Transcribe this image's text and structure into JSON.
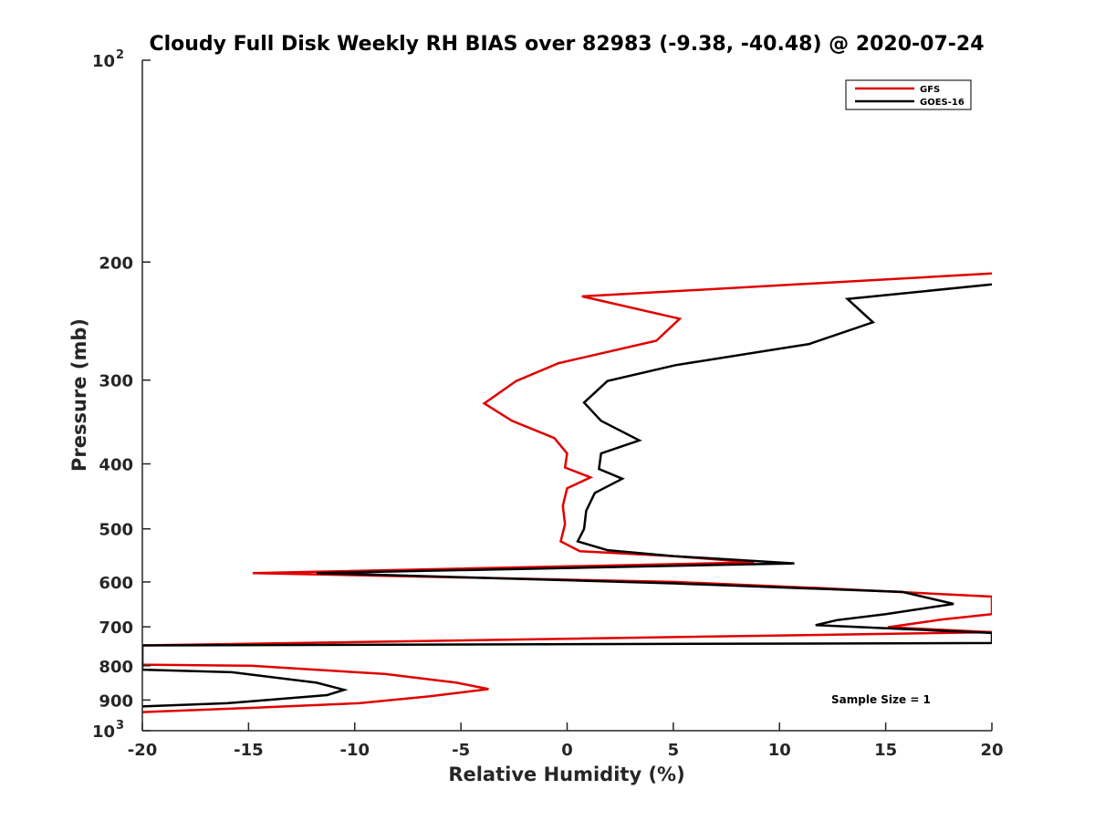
{
  "chart_data": {
    "type": "line",
    "title": "Cloudy Full Disk Weekly RH BIAS over 82983 (-9.38, -40.48) @ 2020-07-24",
    "xlabel": "Relative Humidity (%)",
    "ylabel": "Pressure (mb)",
    "xlim": [
      -20,
      20
    ],
    "ylim": [
      100,
      1000
    ],
    "y_scale": "log",
    "y_reversed": true,
    "grid": false,
    "legend_position": "top-right",
    "annotation": "Sample Size = 1",
    "x_ticks": [
      "-20",
      "-15",
      "-10",
      "-5",
      "0",
      "5",
      "10",
      "15",
      "20"
    ],
    "y_ticks": [
      {
        "value": 100,
        "base": "10",
        "exp": "2"
      },
      {
        "value": 200,
        "label": "200"
      },
      {
        "value": 300,
        "label": "300"
      },
      {
        "value": 400,
        "label": "400"
      },
      {
        "value": 500,
        "label": "500"
      },
      {
        "value": 600,
        "label": "600"
      },
      {
        "value": 700,
        "label": "700"
      },
      {
        "value": 800,
        "label": "800"
      },
      {
        "value": 900,
        "label": "900"
      },
      {
        "value": 1000,
        "base": "10",
        "exp": "3"
      }
    ],
    "series": [
      {
        "name": "GFS",
        "color": "#e00000",
        "points": [
          [
            20,
            208
          ],
          [
            0.7,
            225
          ],
          [
            5.3,
            243
          ],
          [
            4.2,
            262
          ],
          [
            -0.4,
            283
          ],
          [
            -2.4,
            301
          ],
          [
            -3.9,
            325
          ],
          [
            -2.6,
            345
          ],
          [
            -0.6,
            366
          ],
          [
            0,
            386
          ],
          [
            -0.1,
            405
          ],
          [
            1.1,
            419
          ],
          [
            0,
            435
          ],
          [
            -0.2,
            462
          ],
          [
            -0.1,
            492
          ],
          [
            -0.3,
            522
          ],
          [
            0.6,
            540
          ],
          [
            5,
            549
          ],
          [
            8.8,
            561
          ],
          [
            -14.8,
            582
          ],
          [
            5,
            600
          ],
          [
            12,
            613
          ],
          [
            20,
            631
          ],
          [
            20,
            670
          ],
          [
            17.6,
            683
          ],
          [
            15.1,
            701
          ],
          [
            20,
            713
          ],
          [
            -20,
            746
          ],
          [
            -20,
            797
          ],
          [
            -14.9,
            800
          ],
          [
            -8.6,
            823
          ],
          [
            -5.2,
            848
          ],
          [
            -3.7,
            867
          ],
          [
            -6.5,
            889
          ],
          [
            -9.8,
            910
          ],
          [
            -15,
            925
          ],
          [
            -20,
            938
          ]
        ]
      },
      {
        "name": "GOES-16",
        "color": "#000000",
        "points": [
          [
            20,
            216
          ],
          [
            13.2,
            227
          ],
          [
            14.4,
            246
          ],
          [
            11.4,
            265
          ],
          [
            5.1,
            285
          ],
          [
            1.9,
            301
          ],
          [
            0.8,
            324
          ],
          [
            1.6,
            345
          ],
          [
            3.4,
            369
          ],
          [
            1.6,
            386
          ],
          [
            1.5,
            407
          ],
          [
            2.6,
            421
          ],
          [
            1.3,
            442
          ],
          [
            0.9,
            470
          ],
          [
            0.8,
            500
          ],
          [
            0.5,
            522
          ],
          [
            1.9,
            538
          ],
          [
            5,
            549
          ],
          [
            10.7,
            563
          ],
          [
            -11.8,
            582
          ],
          [
            5,
            603
          ],
          [
            15.8,
            621
          ],
          [
            18.2,
            647
          ],
          [
            15,
            670
          ],
          [
            12.7,
            684
          ],
          [
            11.7,
            696
          ],
          [
            20,
            715
          ],
          [
            20,
            740
          ],
          [
            -20,
            746
          ],
          [
            -20,
            811
          ],
          [
            -15.8,
            818
          ],
          [
            -11.8,
            848
          ],
          [
            -10.5,
            869
          ],
          [
            -11.3,
            885
          ],
          [
            -16,
            910
          ],
          [
            -20,
            920
          ]
        ]
      }
    ]
  }
}
